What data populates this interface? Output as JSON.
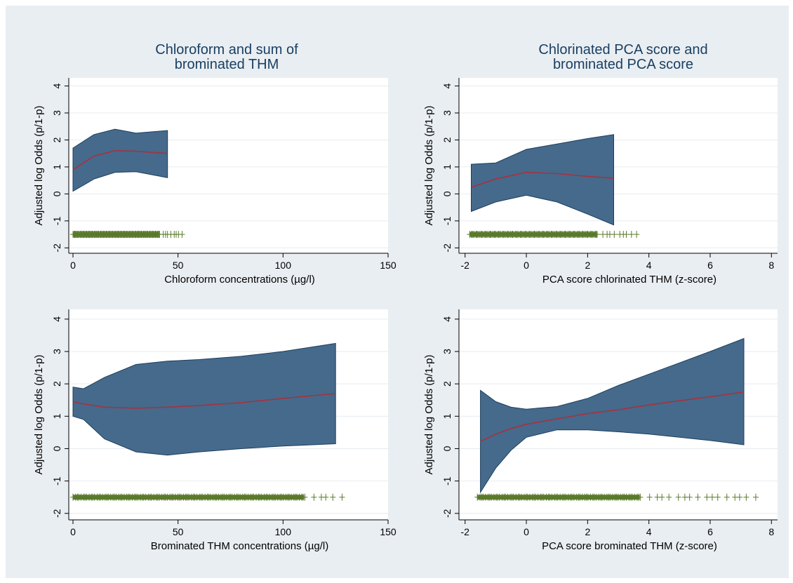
{
  "panels": [
    {
      "title": "Chloroform and sum of\nbrominated THM",
      "chart_data": {
        "type": "area",
        "xlabel": "Chloroform concentrations (µg/l)",
        "ylabel": "Adjusted log Odds (p/1-p)",
        "xlim": [
          -2,
          150
        ],
        "ylim": [
          -2.2,
          4.3
        ],
        "xticks": [
          0,
          50,
          100,
          150
        ],
        "yticks": [
          -2,
          -1,
          0,
          1,
          2,
          3,
          4
        ],
        "grid": true,
        "series": [
          {
            "x": [
              0,
              10,
              20,
              30,
              45
            ],
            "lower": [
              0.1,
              0.55,
              0.8,
              0.82,
              0.6
            ],
            "upper": [
              1.7,
              2.2,
              2.4,
              2.25,
              2.35
            ],
            "fit": [
              0.9,
              1.4,
              1.6,
              1.58,
              1.5
            ]
          }
        ],
        "rug": {
          "y": -1.5,
          "x_min": 0,
          "x_max": 52,
          "dense_until": 41
        }
      }
    },
    {
      "title": "Chlorinated PCA score and\nbrominated PCA score",
      "chart_data": {
        "type": "area",
        "xlabel": "PCA score chlorinated THM (z-score)",
        "ylabel": "Adjusted log Odds (p/1-p)",
        "xlim": [
          -2.2,
          8.2
        ],
        "ylim": [
          -2.2,
          4.3
        ],
        "xticks": [
          -2,
          0,
          2,
          4,
          6,
          8
        ],
        "yticks": [
          -2,
          -1,
          0,
          1,
          2,
          3,
          4
        ],
        "grid": true,
        "series": [
          {
            "x": [
              -1.8,
              -1,
              0,
              1,
              2,
              2.85
            ],
            "lower": [
              -0.65,
              -0.3,
              -0.05,
              -0.3,
              -0.75,
              -1.15
            ],
            "upper": [
              1.1,
              1.15,
              1.65,
              1.85,
              2.05,
              2.2
            ],
            "fit": [
              0.25,
              0.55,
              0.8,
              0.75,
              0.65,
              0.58
            ]
          }
        ],
        "rug": {
          "y": -1.5,
          "x_min": -1.85,
          "x_max": 3.6,
          "dense_until": 2.3
        }
      }
    },
    {
      "title": "",
      "chart_data": {
        "type": "area",
        "xlabel": "Brominated THM concentrations (µg/l)",
        "ylabel": "Adjusted log Odds (p/1-p)",
        "xlim": [
          -2,
          150
        ],
        "ylim": [
          -2.2,
          4.3
        ],
        "xticks": [
          0,
          50,
          100,
          150
        ],
        "yticks": [
          -2,
          -1,
          0,
          1,
          2,
          3,
          4
        ],
        "grid": true,
        "series": [
          {
            "x": [
              0,
              5,
              15,
              30,
              45,
              60,
              80,
              100,
              125
            ],
            "lower": [
              1.0,
              0.9,
              0.3,
              -0.1,
              -0.2,
              -0.1,
              0.0,
              0.08,
              0.15
            ],
            "upper": [
              1.9,
              1.85,
              2.2,
              2.6,
              2.7,
              2.75,
              2.85,
              3.0,
              3.25
            ],
            "fit": [
              1.45,
              1.38,
              1.28,
              1.25,
              1.28,
              1.33,
              1.42,
              1.55,
              1.7
            ]
          }
        ],
        "rug": {
          "y": -1.5,
          "x_min": 0,
          "x_max": 131,
          "dense_until": 110
        }
      }
    },
    {
      "title": "",
      "chart_data": {
        "type": "area",
        "xlabel": "PCA score brominated THM (z-score)",
        "ylabel": "Adjusted log Odds (p/1-p)",
        "xlim": [
          -2.2,
          8.2
        ],
        "ylim": [
          -2.2,
          4.3
        ],
        "xticks": [
          -2,
          0,
          2,
          4,
          6,
          8
        ],
        "yticks": [
          -2,
          -1,
          0,
          1,
          2,
          3,
          4
        ],
        "grid": true,
        "series": [
          {
            "x": [
              -1.5,
              -1,
              -0.5,
              0,
              1,
              2,
              3,
              4,
              5,
              6,
              7.1
            ],
            "lower": [
              -1.35,
              -0.6,
              -0.05,
              0.35,
              0.58,
              0.58,
              0.52,
              0.45,
              0.35,
              0.25,
              0.12
            ],
            "upper": [
              1.8,
              1.45,
              1.28,
              1.22,
              1.3,
              1.55,
              1.95,
              2.3,
              2.65,
              3.0,
              3.4
            ],
            "fit": [
              0.22,
              0.45,
              0.62,
              0.75,
              0.92,
              1.08,
              1.2,
              1.35,
              1.48,
              1.6,
              1.75
            ]
          }
        ],
        "rug": {
          "y": -1.5,
          "x_min": -1.6,
          "x_max": 7.6,
          "dense_until": 3.7
        }
      }
    }
  ],
  "colors": {
    "figure_bg": "#e9eef2",
    "plot_bg": "#ffffff",
    "band_fill": "#456a8c",
    "band_edge": "#1d3e5c",
    "fit_line": "#a6323e",
    "rug": "#5a7a2c",
    "grid": "#e6ebf0",
    "axis": "#000000",
    "title": "#1a3f62"
  }
}
